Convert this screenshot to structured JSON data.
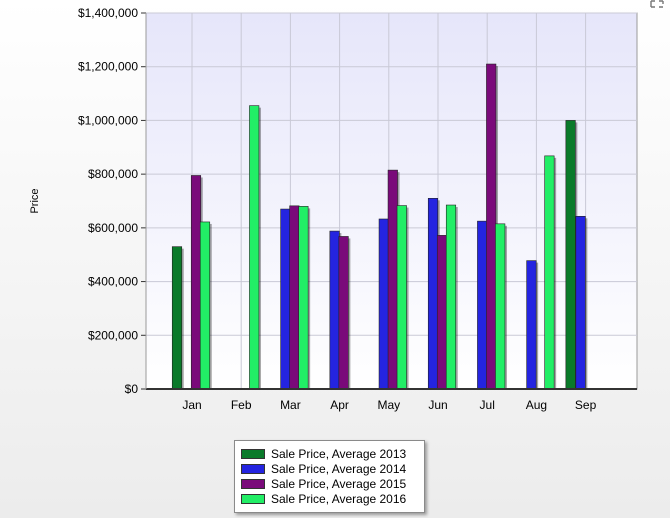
{
  "chart_data": {
    "type": "bar",
    "title": "",
    "xlabel": "",
    "ylabel": "Price",
    "ylim": [
      0,
      1400000
    ],
    "yticks": [
      0,
      200000,
      400000,
      600000,
      800000,
      1000000,
      1200000,
      1400000
    ],
    "ytick_labels": [
      "$0",
      "$200,000",
      "$400,000",
      "$600,000",
      "$800,000",
      "$1,000,000",
      "$1,200,000",
      "$1,400,000"
    ],
    "categories": [
      "Jan",
      "Feb",
      "Mar",
      "Apr",
      "May",
      "Jun",
      "Jul",
      "Aug",
      "Sep"
    ],
    "grid": true,
    "legend_position": "bottom",
    "series": [
      {
        "name": "Sale Price, Average 2013",
        "color": "#0a7a2a",
        "values": [
          530000,
          null,
          null,
          null,
          null,
          null,
          null,
          null,
          1000000
        ]
      },
      {
        "name": "Sale Price, Average 2014",
        "color": "#2424e0",
        "values": [
          null,
          null,
          670000,
          588000,
          633000,
          710000,
          625000,
          478000,
          643000
        ]
      },
      {
        "name": "Sale Price, Average 2015",
        "color": "#7a0a7a",
        "values": [
          795000,
          null,
          682000,
          568000,
          815000,
          572000,
          1210000,
          null,
          null
        ]
      },
      {
        "name": "Sale Price, Average 2016",
        "color": "#22ee66",
        "values": [
          622000,
          1055000,
          680000,
          null,
          683000,
          685000,
          615000,
          868000,
          null
        ]
      }
    ]
  },
  "ui": {
    "expand_icon": "expand-icon"
  }
}
